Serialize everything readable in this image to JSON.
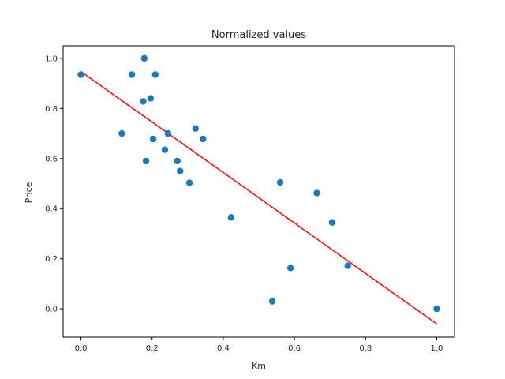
{
  "chart_data": {
    "type": "scatter",
    "title": "Normalized values",
    "xlabel": "Km",
    "ylabel": "Price",
    "xlim": [
      -0.05,
      1.05
    ],
    "ylim": [
      -0.113,
      1.05
    ],
    "xticks": [
      "0.0",
      "0.2",
      "0.4",
      "0.6",
      "0.8",
      "1.0"
    ],
    "yticks": [
      "0.0",
      "0.2",
      "0.4",
      "0.6",
      "0.8",
      "1.0"
    ],
    "grid": false,
    "colors": {
      "points": "#1f77b4",
      "fit": "#ff0000"
    },
    "series": [
      {
        "kind": "points",
        "points": [
          [
            0.0,
            0.935
          ],
          [
            0.143,
            0.935
          ],
          [
            0.178,
            1.0
          ],
          [
            0.209,
            0.935
          ],
          [
            0.175,
            0.828
          ],
          [
            0.196,
            0.84
          ],
          [
            0.115,
            0.7
          ],
          [
            0.245,
            0.7
          ],
          [
            0.203,
            0.678
          ],
          [
            0.183,
            0.59
          ],
          [
            0.236,
            0.635
          ],
          [
            0.271,
            0.59
          ],
          [
            0.279,
            0.55
          ],
          [
            0.305,
            0.503
          ],
          [
            0.322,
            0.72
          ],
          [
            0.343,
            0.678
          ],
          [
            0.422,
            0.365
          ],
          [
            0.56,
            0.505
          ],
          [
            0.663,
            0.462
          ],
          [
            0.706,
            0.345
          ],
          [
            0.75,
            0.172
          ],
          [
            0.589,
            0.163
          ],
          [
            0.538,
            0.03
          ],
          [
            1.0,
            0.0
          ]
        ]
      },
      {
        "kind": "fit-line",
        "points": [
          [
            0.0,
            0.947
          ],
          [
            1.0,
            -0.06
          ]
        ]
      }
    ]
  }
}
